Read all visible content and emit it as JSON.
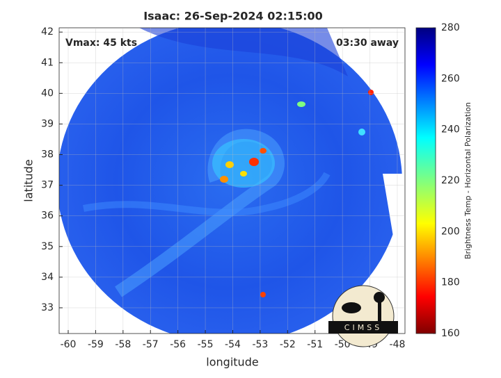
{
  "chart_data": {
    "type": "heatmap",
    "title": "Isaac: 26-Sep-2024 02:15:00",
    "annotations": [
      "Vmax: 45 kts",
      "03:30 away"
    ],
    "xlabel": "longitude",
    "ylabel": "latitude",
    "xlim": [
      -60.33,
      -47.72
    ],
    "xticks": [
      -60,
      -59,
      -58,
      -57,
      -56,
      -55,
      -54,
      -53,
      -52,
      -51,
      -50,
      -49,
      -48
    ],
    "ylim": [
      32.16,
      42.14
    ],
    "yticks": [
      33,
      34,
      35,
      36,
      37,
      38,
      39,
      40,
      41,
      42
    ],
    "grid": true,
    "colorbar": {
      "label": "Brightness Temp - Horizontal Polarization",
      "lim": [
        160,
        280
      ],
      "ticks": [
        160,
        180,
        200,
        220,
        240,
        260,
        280
      ]
    },
    "logo_text": "CIMSS"
  }
}
